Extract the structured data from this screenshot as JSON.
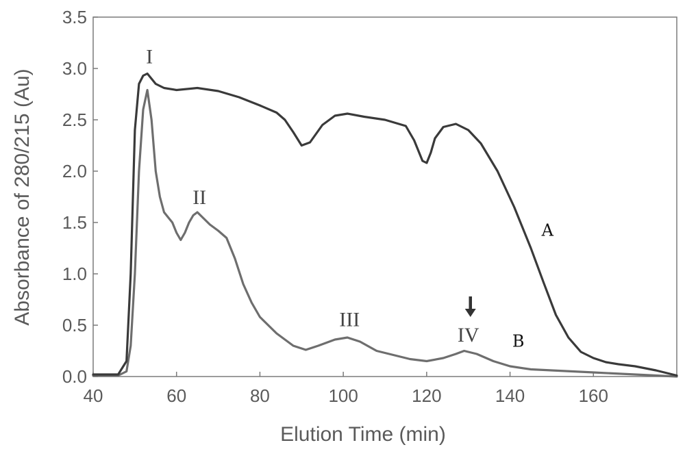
{
  "chart_data": {
    "type": "line",
    "xlabel": "Elution Time (min)",
    "ylabel": "Absorbance of 280/215 (Au)",
    "xlim": [
      40,
      180
    ],
    "ylim": [
      0,
      3.5
    ],
    "x_ticks": [
      "40",
      "60",
      "80",
      "100",
      "120",
      "140",
      "160"
    ],
    "y_ticks": [
      "0.0",
      "0.5",
      "1.0",
      "1.5",
      "2.0",
      "2.5",
      "3.0",
      "3.5"
    ],
    "x_tick_values": [
      40,
      60,
      80,
      100,
      120,
      140,
      160
    ],
    "y_tick_values": [
      0,
      0.5,
      1.0,
      1.5,
      2.0,
      2.5,
      3.0,
      3.5
    ],
    "grid": false,
    "series": [
      {
        "name": "A",
        "color": "#3a3a3a",
        "x": [
          40,
          46,
          48,
          49,
          50,
          51,
          52,
          53,
          54,
          55,
          57,
          60,
          65,
          70,
          75,
          80,
          84,
          86,
          88,
          90,
          92,
          95,
          98,
          101,
          105,
          110,
          115,
          117,
          118,
          119,
          120,
          121,
          122,
          124,
          127,
          130,
          133,
          137,
          141,
          145,
          148,
          151,
          154,
          157,
          160,
          163,
          166,
          170,
          175,
          180
        ],
        "y": [
          0.02,
          0.02,
          0.15,
          1.0,
          2.4,
          2.85,
          2.93,
          2.95,
          2.9,
          2.85,
          2.81,
          2.79,
          2.81,
          2.78,
          2.72,
          2.64,
          2.57,
          2.5,
          2.38,
          2.25,
          2.28,
          2.45,
          2.54,
          2.56,
          2.53,
          2.5,
          2.44,
          2.3,
          2.2,
          2.1,
          2.08,
          2.18,
          2.32,
          2.43,
          2.46,
          2.4,
          2.27,
          2.0,
          1.65,
          1.25,
          0.92,
          0.6,
          0.38,
          0.24,
          0.18,
          0.14,
          0.12,
          0.1,
          0.06,
          0.01
        ]
      },
      {
        "name": "B",
        "color": "#6e6e6e",
        "x": [
          40,
          46,
          48,
          49,
          50,
          51,
          52,
          53,
          54,
          55,
          56,
          57,
          58,
          59,
          60,
          61,
          62,
          63,
          64,
          65,
          66,
          68,
          70,
          72,
          74,
          76,
          78,
          80,
          84,
          88,
          91,
          94,
          98,
          101,
          104,
          108,
          112,
          116,
          120,
          124,
          127,
          129,
          132,
          136,
          140,
          145,
          150,
          160,
          170,
          180
        ],
        "y": [
          0.01,
          0.01,
          0.05,
          0.3,
          1.0,
          2.0,
          2.6,
          2.79,
          2.5,
          2.0,
          1.75,
          1.6,
          1.55,
          1.5,
          1.4,
          1.33,
          1.4,
          1.5,
          1.57,
          1.6,
          1.56,
          1.48,
          1.42,
          1.35,
          1.15,
          0.9,
          0.72,
          0.58,
          0.42,
          0.3,
          0.26,
          0.3,
          0.36,
          0.38,
          0.34,
          0.25,
          0.21,
          0.17,
          0.15,
          0.18,
          0.22,
          0.25,
          0.22,
          0.15,
          0.1,
          0.07,
          0.06,
          0.04,
          0.02,
          0.0
        ]
      }
    ],
    "annotations": [
      {
        "text": "I",
        "x": 53.5,
        "y": 3.05,
        "type": "peak"
      },
      {
        "text": "II",
        "x": 65.5,
        "y": 1.68,
        "type": "peak"
      },
      {
        "text": "III",
        "x": 101.5,
        "y": 0.49,
        "type": "peak"
      },
      {
        "text": "IV",
        "x": 130,
        "y": 0.34,
        "type": "peak"
      },
      {
        "text": "A",
        "x": 149,
        "y": 1.37,
        "type": "curve"
      },
      {
        "text": "B",
        "x": 142,
        "y": 0.29,
        "type": "curve"
      }
    ],
    "arrow": {
      "x": 130.5,
      "y_from": 0.78,
      "y_to": 0.58
    }
  }
}
